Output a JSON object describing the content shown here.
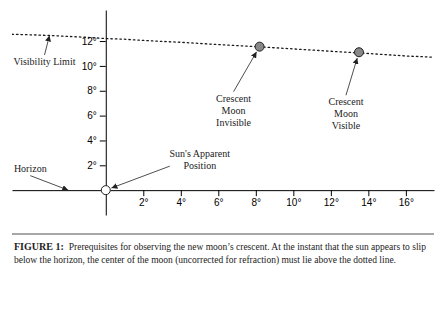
{
  "chart_data": {
    "type": "line",
    "title": "FIGURE 1:",
    "subtitle": "Prerequisites for observing the new moon’s crescent. At the instant that the sun appears to slip below the horizon, the center of the moon (uncorrected for refraction) must lie above the dotted line.",
    "xlim": [
      -5,
      17.5
    ],
    "ylim": [
      -2.0,
      14.5
    ],
    "xticks": [
      {
        "value": 2,
        "label": "2°"
      },
      {
        "value": 4,
        "label": "4°"
      },
      {
        "value": 6,
        "label": "6°"
      },
      {
        "value": 8,
        "label": "8°"
      },
      {
        "value": 10,
        "label": "10°"
      },
      {
        "value": 12,
        "label": "12°"
      },
      {
        "value": 14,
        "label": "14°"
      },
      {
        "value": 16,
        "label": "16°"
      }
    ],
    "yticks": [
      {
        "value": 2,
        "label": "2°"
      },
      {
        "value": 4,
        "label": "4°"
      },
      {
        "value": 6,
        "label": "6°"
      },
      {
        "value": 8,
        "label": "8°"
      },
      {
        "value": 10,
        "label": "10°"
      },
      {
        "value": 12,
        "label": "12°"
      }
    ],
    "grid": false,
    "series": [
      {
        "type": "line",
        "line_style": "dotted",
        "color": "#1a1a1a",
        "x": [
          -5,
          -3,
          -1,
          0,
          1,
          2,
          4,
          6,
          8,
          10,
          12,
          14,
          16,
          17.5
        ],
        "values": [
          12.55,
          12.45,
          12.3,
          12.2,
          12.15,
          12.05,
          11.9,
          11.72,
          11.55,
          11.37,
          11.18,
          11.0,
          10.8,
          10.7
        ]
      },
      {
        "type": "scatter",
        "marker": "circle",
        "color": "#888888",
        "x": [
          8.2,
          13.5
        ],
        "values": [
          11.55,
          11.1
        ]
      },
      {
        "type": "scatter",
        "marker": "circle",
        "color": "#ffffff",
        "x": [
          0
        ],
        "values": [
          0
        ]
      }
    ],
    "annotations": [
      {
        "text": "Visibility Limit",
        "x": -3,
        "y": 12.45
      },
      {
        "text": "Horizon",
        "x": -2,
        "y": 0
      },
      {
        "text": "Crescent\nMoon\nInvisible",
        "x": 8.2,
        "y": 11.55
      },
      {
        "text": "Crescent\nMoon\nVisible",
        "x": 13.5,
        "y": 11.1
      },
      {
        "text": "Sun's Apparent\nPosition",
        "x": 0,
        "y": 0
      }
    ]
  }
}
